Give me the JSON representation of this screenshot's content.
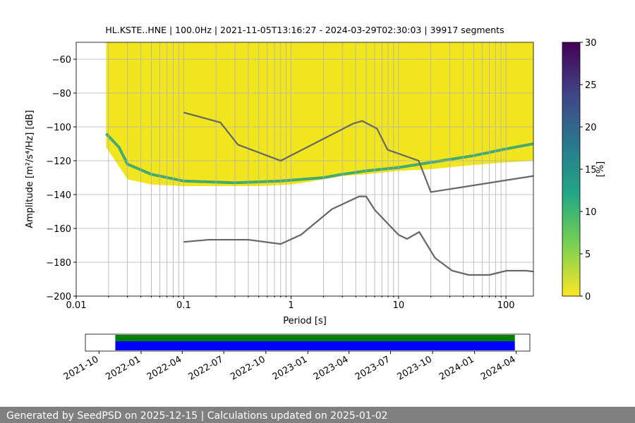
{
  "chart_data": [
    {
      "type": "ppsd",
      "title": "HL.KSTE..HNE | 100.0Hz | 2021-11-05T13:16:27 - 2024-03-29T02:30:03 | 39917 segments",
      "x_label": "Period [s]",
      "y_label": "Amplitude [m²/s⁴/Hz] [dB]",
      "xscale": "log",
      "xlim": [
        0.01,
        180
      ],
      "ylim": [
        -200,
        -50
      ],
      "xticks": [
        0.01,
        0.1,
        1,
        10,
        100
      ],
      "xminorticks": [
        0.02,
        0.03,
        0.04,
        0.05,
        0.06,
        0.07,
        0.08,
        0.09,
        0.2,
        0.3,
        0.4,
        0.5,
        0.6,
        0.7,
        0.8,
        0.9,
        2,
        3,
        4,
        5,
        6,
        7,
        8,
        9,
        20,
        30,
        40,
        50,
        60,
        70,
        80,
        90
      ],
      "yticks": [
        {
          "value": -60,
          "label": "−60"
        },
        {
          "value": -80,
          "label": "−80"
        },
        {
          "value": -100,
          "label": "−100"
        },
        {
          "value": -120,
          "label": "−120"
        },
        {
          "value": -140,
          "label": "−140"
        },
        {
          "value": -160,
          "label": "−160"
        },
        {
          "value": -180,
          "label": "−180"
        },
        {
          "value": -200,
          "label": "−200"
        }
      ],
      "grid": true,
      "coverage": {
        "color": "#f1e51d",
        "x": [
          0.019,
          0.03,
          0.05,
          0.1,
          0.5,
          1,
          1.3,
          2,
          3,
          5,
          10,
          20,
          40,
          100,
          180
        ],
        "upper": [
          -50,
          -50,
          -50,
          -50,
          -50,
          -50,
          -50,
          -50,
          -50,
          -50,
          -50,
          -50,
          -50,
          -50,
          -50
        ],
        "lower": [
          -112,
          -131,
          -134,
          -135,
          -135,
          -134,
          -133,
          -131,
          -129,
          -128,
          -126,
          -125,
          -123,
          -121,
          -120
        ]
      },
      "mode": {
        "color": "#27a07f",
        "x": [
          0.019,
          0.025,
          0.03,
          0.05,
          0.1,
          0.3,
          0.8,
          2,
          3,
          5,
          10,
          20,
          50,
          100,
          180
        ],
        "values": [
          -104,
          -112,
          -122,
          -128,
          -132,
          -133,
          -132,
          -130,
          -128,
          -126,
          -124,
          -121,
          -117,
          -113,
          -110
        ]
      },
      "series": [
        {
          "color": "#666666",
          "x": [
            0.1,
            0.22,
            0.32,
            0.8,
            3.8,
            4.6,
            6.3,
            7.9,
            15.4,
            20,
            180
          ],
          "values": [
            -91.5,
            -97.4,
            -110.5,
            -120,
            -98,
            -96.5,
            -101,
            -113.5,
            -120,
            -138.5,
            -129
          ]
        },
        {
          "color": "#666666",
          "x": [
            0.1,
            0.17,
            0.4,
            0.8,
            1.24,
            2.4,
            4.3,
            5,
            6,
            10,
            12,
            15.6,
            21.9,
            31.6,
            45,
            70,
            101,
            154,
            180
          ],
          "values": [
            -168,
            -166.7,
            -166.7,
            -169.2,
            -163.7,
            -148.6,
            -141.1,
            -141.1,
            -149,
            -163.8,
            -166.2,
            -162.1,
            -177.5,
            -185,
            -187.5,
            -187.5,
            -185,
            -185,
            -185.5
          ]
        }
      ],
      "colorbar": {
        "lim": [
          0,
          30
        ],
        "ticks": [
          0,
          5,
          10,
          15,
          20,
          25,
          30
        ],
        "label": "[%]"
      }
    },
    {
      "type": "timeline",
      "xlim": [
        "2021-09",
        "2024-05"
      ],
      "xticks": [
        "2021-10",
        "2022-01",
        "2022-04",
        "2022-07",
        "2022-10",
        "2023-01",
        "2023-04",
        "2023-07",
        "2023-10",
        "2024-01",
        "2024-04"
      ],
      "bars": [
        {
          "color": "#008000",
          "start": "2021-11-05T13:16:27",
          "end": "2024-03-29T02:30:03"
        },
        {
          "color": "#0000ff",
          "start": "2021-11-05T13:16:27",
          "end": "2024-03-29T02:30:03"
        }
      ]
    }
  ],
  "footer": {
    "text": "Generated by SeedPSD on 2025-12-15 | Calculations updated on 2025-01-02"
  }
}
